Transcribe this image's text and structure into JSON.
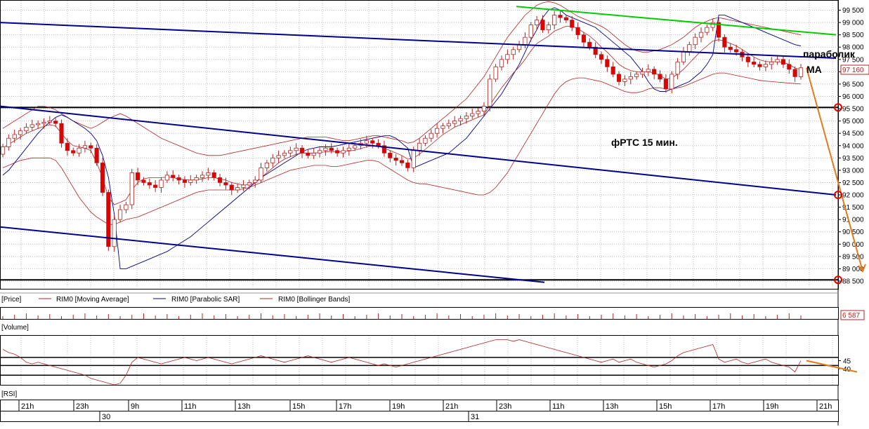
{
  "chart_data": [
    {
      "type": "candlestick",
      "title": "",
      "annotations": {
        "instrument_text": "фРТС   15 мин.",
        "note_line1": "параболик",
        "note_line2": "МА"
      },
      "yaxis": {
        "ticks": [
          "99 500",
          "99 000",
          "98 500",
          "98 000",
          "97 500",
          "97 000",
          "96 500",
          "96 000",
          "95 500",
          "95 000",
          "94 500",
          "94 000",
          "93 500",
          "93 000",
          "92 500",
          "92 000",
          "91 500",
          "91 000",
          "90 500",
          "90 000",
          "89 500",
          "89 000",
          "88 500"
        ],
        "tick_values": [
          99500,
          99000,
          98500,
          98000,
          97500,
          97000,
          96500,
          96000,
          95500,
          95000,
          94500,
          94000,
          93500,
          93000,
          92500,
          92000,
          91500,
          91000,
          90500,
          90000,
          89500,
          89000,
          88500
        ],
        "ylim": [
          88300,
          99800
        ],
        "last_price_label": "97 160",
        "last_price": 97160
      },
      "legend": [
        "[Price]",
        "RIM0 [Moving Average]",
        "RIM0 [Parabolic SAR]",
        "RIM0 [Bollinger Bands]"
      ],
      "horizontal_levels": [
        95550,
        88550
      ],
      "level_markers": [
        95550,
        92000,
        88550
      ],
      "candles_close": [
        93950,
        94300,
        94450,
        94600,
        94750,
        94850,
        94900,
        94950,
        95000,
        94900,
        94100,
        93800,
        93700,
        93900,
        94000,
        93900,
        93300,
        92100,
        89900,
        91000,
        91400,
        91600,
        92900,
        92600,
        92500,
        92400,
        92300,
        92600,
        92800,
        92700,
        92600,
        92500,
        92600,
        92700,
        92800,
        92900,
        92700,
        92500,
        92400,
        92200,
        92300,
        92400,
        92500,
        92600,
        93100,
        93300,
        93500,
        93600,
        93700,
        93800,
        93900,
        93700,
        93600,
        93700,
        93800,
        93900,
        93800,
        93700,
        93800,
        93900,
        94000,
        94100,
        94200,
        94100,
        94000,
        93700,
        93500,
        93400,
        93300,
        93100,
        93800,
        94100,
        94300,
        94500,
        94700,
        94800,
        94900,
        95000,
        95100,
        95200,
        95300,
        95400,
        95600,
        96700,
        97200,
        97500,
        97700,
        97900,
        98100,
        98400,
        98900,
        99100,
        98700,
        98900,
        99300,
        99200,
        99100,
        98800,
        98500,
        98200,
        98000,
        97700,
        97500,
        97200,
        96900,
        96600,
        96700,
        96800,
        96900,
        97000,
        97100,
        96900,
        96700,
        96300,
        96900,
        97400,
        97800,
        98100,
        98400,
        98600,
        98800,
        99000,
        98400,
        98000,
        97900,
        97800,
        97600,
        97400,
        97300,
        97200,
        97300,
        97400,
        97500,
        97300,
        97100,
        96800,
        97160
      ],
      "moving_average": [
        93900,
        94050,
        94200,
        94350,
        94500,
        94600,
        94700,
        94780,
        94850,
        94800,
        94500,
        94200,
        94000,
        93950,
        93900,
        93800,
        93300,
        92700,
        91900,
        91600,
        91700,
        91800,
        92200,
        92500,
        92650,
        92700,
        92700,
        92700,
        92720,
        92700,
        92650,
        92620,
        92600,
        92620,
        92650,
        92700,
        92700,
        92650,
        92600,
        92500,
        92450,
        92400,
        92420,
        92480,
        92700,
        92900,
        93100,
        93300,
        93450,
        93550,
        93650,
        93700,
        93700,
        93700,
        93720,
        93750,
        93750,
        93740,
        93750,
        93780,
        93820,
        93880,
        93950,
        94000,
        93980,
        93900,
        93800,
        93700,
        93600,
        93450,
        93500,
        93650,
        93850,
        94050,
        94250,
        94450,
        94600,
        94750,
        94850,
        94950,
        95050,
        95150,
        95250,
        95650,
        96000,
        96350,
        96650,
        96950,
        97200,
        97500,
        97850,
        98150,
        98300,
        98450,
        98650,
        98750,
        98850,
        98850,
        98750,
        98600,
        98450,
        98250,
        98000,
        97800,
        97550,
        97300,
        97150,
        97050,
        97000,
        97000,
        97000,
        96950,
        96850,
        96700,
        96750,
        96900,
        97100,
        97350,
        97600,
        97850,
        98050,
        98250,
        98300,
        98250,
        98150,
        98050,
        97900,
        97750,
        97600,
        97480,
        97420,
        97400,
        97420,
        97380,
        97300,
        97150,
        97100
      ],
      "parabolic_sar": [
        92800,
        93000,
        93300,
        93600,
        93900,
        94200,
        94500,
        94750,
        94950,
        95150,
        95250,
        95150,
        95000,
        94850,
        94700,
        94500,
        94200,
        93600,
        92700,
        91200,
        89000,
        89000,
        89100,
        89200,
        89300,
        89400,
        89500,
        89600,
        89700,
        89850,
        90000,
        90150,
        90300,
        90500,
        90700,
        90900,
        91100,
        91300,
        91500,
        91700,
        91900,
        92100,
        92300,
        92500,
        92700,
        92850,
        93000,
        93150,
        93300,
        93450,
        93600,
        93750,
        93850,
        93900,
        93950,
        93950,
        93950,
        94000,
        94050,
        94100,
        94150,
        94200,
        94250,
        94300,
        94350,
        94400,
        94400,
        94300,
        94100,
        93900,
        93100,
        93200,
        93300,
        93400,
        93500,
        93600,
        93700,
        93900,
        94100,
        94300,
        94600,
        94900,
        95200,
        95500,
        95800,
        96100,
        96500,
        96900,
        97300,
        97800,
        98300,
        98700,
        99200,
        99500,
        99600,
        99500,
        99300,
        99200,
        99100,
        99000,
        98900,
        98800,
        98600,
        98400,
        98200,
        98000,
        97800,
        97600,
        97300,
        97000,
        96600,
        96300,
        96200,
        96200,
        96300,
        96400,
        96500,
        96600,
        96800,
        97000,
        97300,
        97700,
        99300,
        99300,
        99200,
        99100,
        99000,
        98900,
        98800,
        98700,
        98600,
        98500,
        98400,
        98300,
        98200,
        98100,
        98050
      ],
      "bollinger_upper": [
        94700,
        94850,
        95000,
        95150,
        95300,
        95450,
        95600,
        95600,
        95550,
        95450,
        95300,
        95150,
        95000,
        94900,
        94800,
        94700,
        94800,
        94950,
        95100,
        95200,
        95300,
        95200,
        95050,
        94900,
        94750,
        94600,
        94450,
        94300,
        94200,
        94100,
        94000,
        93900,
        93800,
        93700,
        93650,
        93600,
        93600,
        93600,
        93650,
        93700,
        93750,
        93800,
        93850,
        93900,
        93950,
        94000,
        94050,
        94100,
        94150,
        94200,
        94250,
        94300,
        94350,
        94350,
        94350,
        94350,
        94300,
        94250,
        94200,
        94200,
        94250,
        94300,
        94350,
        94400,
        94400,
        94350,
        94300,
        94250,
        94200,
        94100,
        94150,
        94300,
        94500,
        94700,
        94900,
        95100,
        95300,
        95500,
        95700,
        95900,
        96200,
        96500,
        96800,
        97200,
        97600,
        98000,
        98400,
        98700,
        99000,
        99300,
        99500,
        99700,
        99800,
        99850,
        99800,
        99700,
        99550,
        99400,
        99250,
        99150,
        99050,
        98950,
        98850,
        98700,
        98500,
        98300,
        98100,
        97950,
        97850,
        97800,
        97800,
        97850,
        97900,
        98000,
        98100,
        98250,
        98400,
        98600,
        98800,
        98950,
        99050,
        99150,
        99200,
        99150,
        99100,
        99050,
        99000,
        98950,
        98900,
        98850,
        98800,
        98750,
        98700,
        98650,
        98600,
        98550,
        98500
      ],
      "bollinger_lower": [
        93100,
        93200,
        93300,
        93400,
        93450,
        93500,
        93500,
        93500,
        93500,
        93400,
        93100,
        92700,
        92300,
        91900,
        91600,
        91300,
        91100,
        90950,
        90800,
        90800,
        90900,
        91000,
        91050,
        91100,
        91200,
        91300,
        91400,
        91500,
        91600,
        91700,
        91800,
        91900,
        92000,
        92100,
        92150,
        92200,
        92200,
        92200,
        92200,
        92200,
        92200,
        92250,
        92300,
        92400,
        92500,
        92600,
        92700,
        92800,
        92900,
        93000,
        93050,
        93100,
        93150,
        93200,
        93200,
        93200,
        93150,
        93150,
        93200,
        93250,
        93300,
        93350,
        93400,
        93400,
        93350,
        93200,
        93050,
        92900,
        92750,
        92600,
        92500,
        92450,
        92450,
        92400,
        92350,
        92300,
        92250,
        92200,
        92150,
        92100,
        92050,
        92000,
        92000,
        92100,
        92300,
        92600,
        92900,
        93300,
        93700,
        94100,
        94500,
        94900,
        95300,
        95700,
        96100,
        96400,
        96600,
        96700,
        96750,
        96750,
        96700,
        96650,
        96600,
        96500,
        96400,
        96300,
        96200,
        96150,
        96150,
        96200,
        96300,
        96350,
        96350,
        96300,
        96300,
        96350,
        96400,
        96500,
        96600,
        96700,
        96800,
        96900,
        96950,
        96950,
        96900,
        96850,
        96800,
        96750,
        96700,
        96650,
        96620,
        96600,
        96580,
        96560,
        96540,
        96520,
        96500
      ],
      "channel_lines": [
        {
          "color": "#00008b",
          "points": [
            [
              0,
              99000
            ],
            [
              1190,
              97550
            ]
          ]
        },
        {
          "color": "#00008b",
          "points": [
            [
              0,
              95600
            ],
            [
              1190,
              92000
            ]
          ]
        },
        {
          "color": "#00008b",
          "points": [
            [
              0,
              90700
            ],
            [
              775,
              88450
            ]
          ]
        },
        {
          "color": "#00cc00",
          "points": [
            [
              735,
              99650
            ],
            [
              1190,
              98500
            ]
          ]
        }
      ],
      "forecast_arrow": {
        "color": "#e07b1a",
        "points": [
          [
            1148,
            97160
          ],
          [
            1228,
            88900
          ]
        ]
      }
    },
    {
      "type": "bar",
      "label": "[Volume]",
      "last_value_label": "6 587",
      "last_value": 6587
    },
    {
      "type": "line",
      "label": "[RSI]",
      "yaxis": {
        "ticks": [
          "45",
          "40"
        ],
        "tick_values": [
          45,
          40
        ]
      },
      "levels": [
        47,
        42,
        36
      ],
      "values": [
        52,
        50,
        49,
        47,
        44,
        43,
        44,
        43,
        42,
        41,
        40,
        39,
        38,
        37,
        36,
        34,
        33,
        32,
        31,
        30,
        31,
        36,
        44,
        47,
        46,
        45,
        44,
        43,
        44,
        45,
        46,
        47,
        46,
        45,
        46,
        47,
        46,
        45,
        44,
        43,
        44,
        45,
        46,
        47,
        48,
        47,
        46,
        45,
        44,
        45,
        46,
        47,
        48,
        47,
        46,
        45,
        44,
        45,
        46,
        47,
        46,
        45,
        44,
        43,
        42,
        43,
        42,
        41,
        42,
        43,
        44,
        45,
        46,
        47,
        48,
        49,
        50,
        51,
        52,
        53,
        54,
        55,
        56,
        57,
        58,
        58,
        58,
        57,
        58,
        57,
        56,
        55,
        54,
        53,
        52,
        51,
        50,
        49,
        48,
        47,
        46,
        45,
        44,
        45,
        46,
        44,
        45,
        46,
        44,
        43,
        42,
        41,
        42,
        43,
        45,
        48,
        50,
        51,
        52,
        53,
        54,
        55,
        46,
        44,
        45,
        46,
        44,
        43,
        44,
        45,
        46,
        44,
        43,
        42,
        41,
        38,
        45
      ],
      "forecast_arrow": {
        "color": "#e07b1a",
        "points": [
          [
            1148,
            45
          ],
          [
            1220,
            38
          ]
        ]
      }
    }
  ],
  "time_axis": {
    "hours": [
      "21h",
      "23h",
      "9h",
      "11h",
      "13h",
      "15h",
      "17h",
      "19h",
      "21h",
      "23h",
      "11h",
      "13h",
      "15h",
      "17h",
      "19h",
      "21h"
    ],
    "days": [
      "30",
      "31"
    ]
  }
}
